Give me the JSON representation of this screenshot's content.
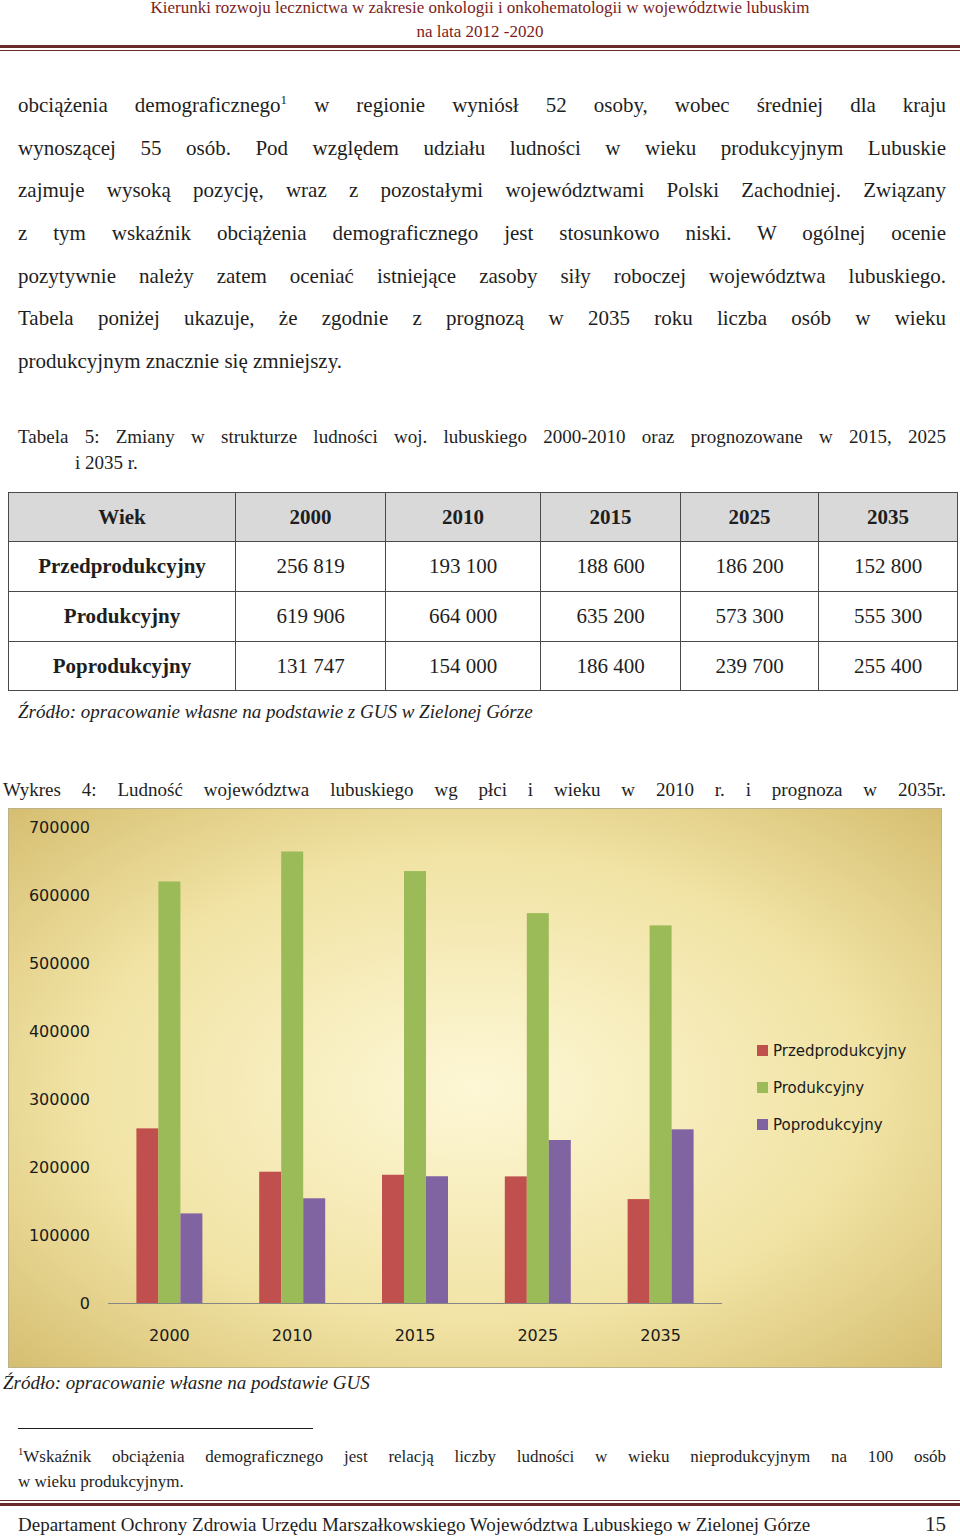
{
  "header": {
    "title": "Kierunki rozwoju lecznictwa w zakresie onkologii i onkohematologii w województwie lubuskim",
    "subtitle": "na lata 2012 -2020"
  },
  "paragraph": {
    "first_line": {
      "before": "obciążenia demograficznego",
      "ref": "1",
      "after": " w regionie wyniósł 52 osoby, wobec średniej dla kraju"
    },
    "lines": [
      "wynoszącej 55 osób. Pod względem udziału ludności w wieku produkcyjnym Lubuskie",
      "zajmuje wysoką pozycję, wraz z pozostałymi województwami Polski Zachodniej. Związany",
      "z tym wskaźnik obciążenia demograficznego jest stosunkowo niski. W ogólnej ocenie",
      "pozytywnie należy zatem oceniać istniejące zasoby siły roboczej województwa lubuskiego.",
      "Tabela poniżej ukazuje, że zgodnie z prognozą w 2035 roku liczba osób w wieku",
      "produkcyjnym znacznie się zmniejszy."
    ]
  },
  "table_caption": [
    "Tabela 5: Zmiany w strukturze ludności woj. lubuskiego 2000-2010 oraz prognozowane w 2015, 2025",
    "i 2035 r."
  ],
  "table": {
    "header": [
      "Wiek",
      "2000",
      "2010",
      "2015",
      "2025",
      "2035"
    ],
    "rows": [
      [
        "Przedprodukcyjny",
        "256 819",
        "193 100",
        "188 600",
        "186 200",
        "152 800"
      ],
      [
        "Produkcyjny",
        "619 906",
        "664 000",
        "635 200",
        "573 300",
        "555 300"
      ],
      [
        "Poprodukcyjny",
        "131 747",
        "154 000",
        "186 400",
        "239 700",
        "255 400"
      ]
    ]
  },
  "table_source": "Źródło: opracowanie własne na podstawie z GUS w Zielonej Górze",
  "figure_caption": "Wykres 4: Ludność województwa lubuskiego wg płci i wieku w 2010 r. i prognoza w 2035r.",
  "chart_data": {
    "type": "bar",
    "categories": [
      "2000",
      "2010",
      "2015",
      "2025",
      "2035"
    ],
    "series": [
      {
        "name": "Przedprodukcyjny",
        "color": "#c0504d",
        "values": [
          256819,
          193100,
          188600,
          186200,
          152800
        ]
      },
      {
        "name": "Produkcyjny",
        "color": "#9bbb59",
        "values": [
          619906,
          664000,
          635200,
          573300,
          555300
        ]
      },
      {
        "name": "Poprodukcyjny",
        "color": "#8064a2",
        "values": [
          131747,
          154000,
          186400,
          239700,
          255400
        ]
      }
    ],
    "ylim": [
      0,
      700000
    ],
    "yticks": [
      0,
      100000,
      200000,
      300000,
      400000,
      500000,
      600000,
      700000
    ],
    "grid": false,
    "legend": "right"
  },
  "figure_source": "Źródło: opracowanie własne na podstawie GUS",
  "footnote": {
    "ref": "1",
    "lines": [
      "Wskaźnik obciążenia demograficznego jest relacją liczby ludności w wieku nieprodukcyjnym na 100 osób",
      "w wieku produkcyjnym."
    ]
  },
  "footer": {
    "text": "Departament Ochrony Zdrowia Urzędu Marszałkowskiego Województwa Lubuskiego w Zielonej Górze",
    "page": "15"
  }
}
